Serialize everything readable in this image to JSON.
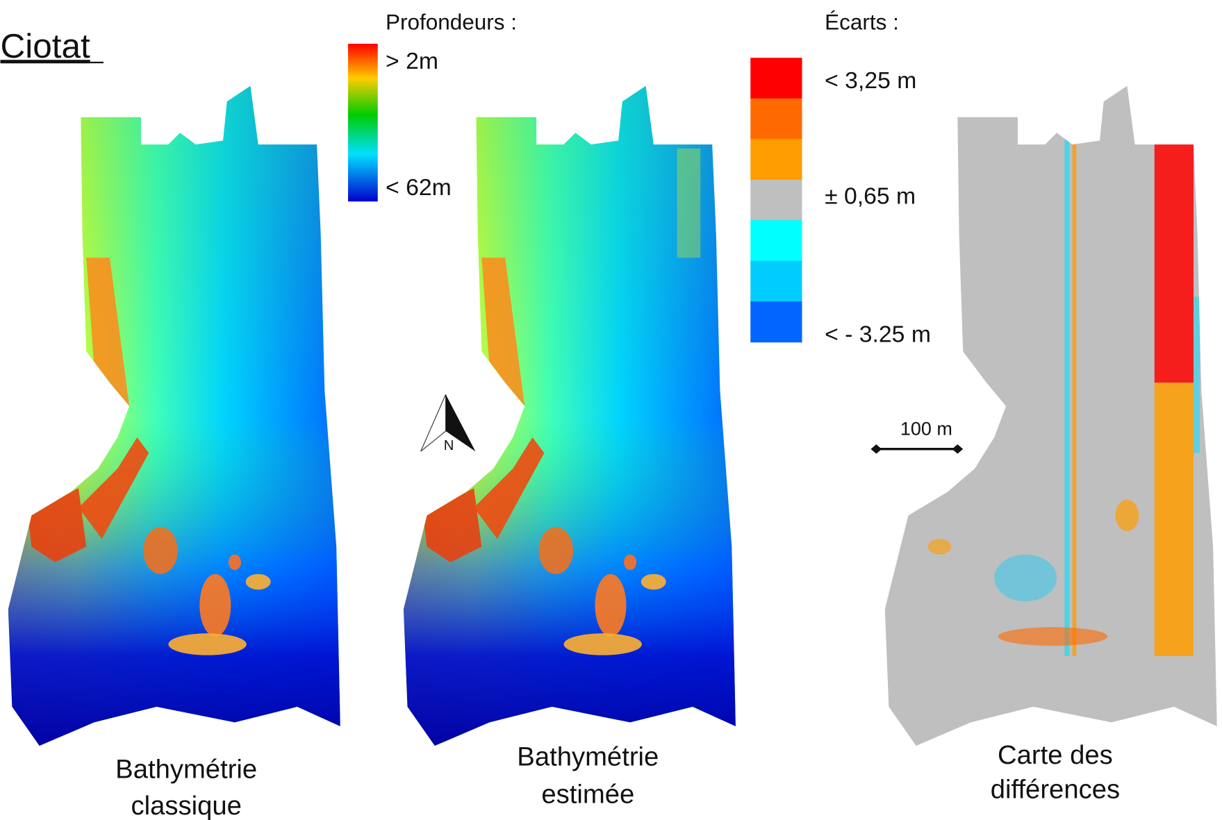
{
  "title": "Ciotat",
  "depth_legend": {
    "title": "Profondeurs :",
    "max_label": "> 2m",
    "min_label": "< 62m"
  },
  "difference_legend": {
    "title": "Écarts :",
    "top_label": "< 3,25 m",
    "middle_label": "± 0,65 m",
    "bottom_label": "< - 3.25 m",
    "colors": [
      "#ff0000",
      "#ff6a00",
      "#ff9c00",
      "#bfbfbf",
      "#00ffff",
      "#00ccff",
      "#0066ff"
    ]
  },
  "north_label": "N",
  "scale_bar_label": "100 m",
  "panels": [
    {
      "caption": [
        "Bathymétrie",
        "classique"
      ]
    },
    {
      "caption": [
        "Bathymétrie",
        "estimée"
      ]
    },
    {
      "caption": [
        "Carte des",
        "différences"
      ]
    }
  ]
}
